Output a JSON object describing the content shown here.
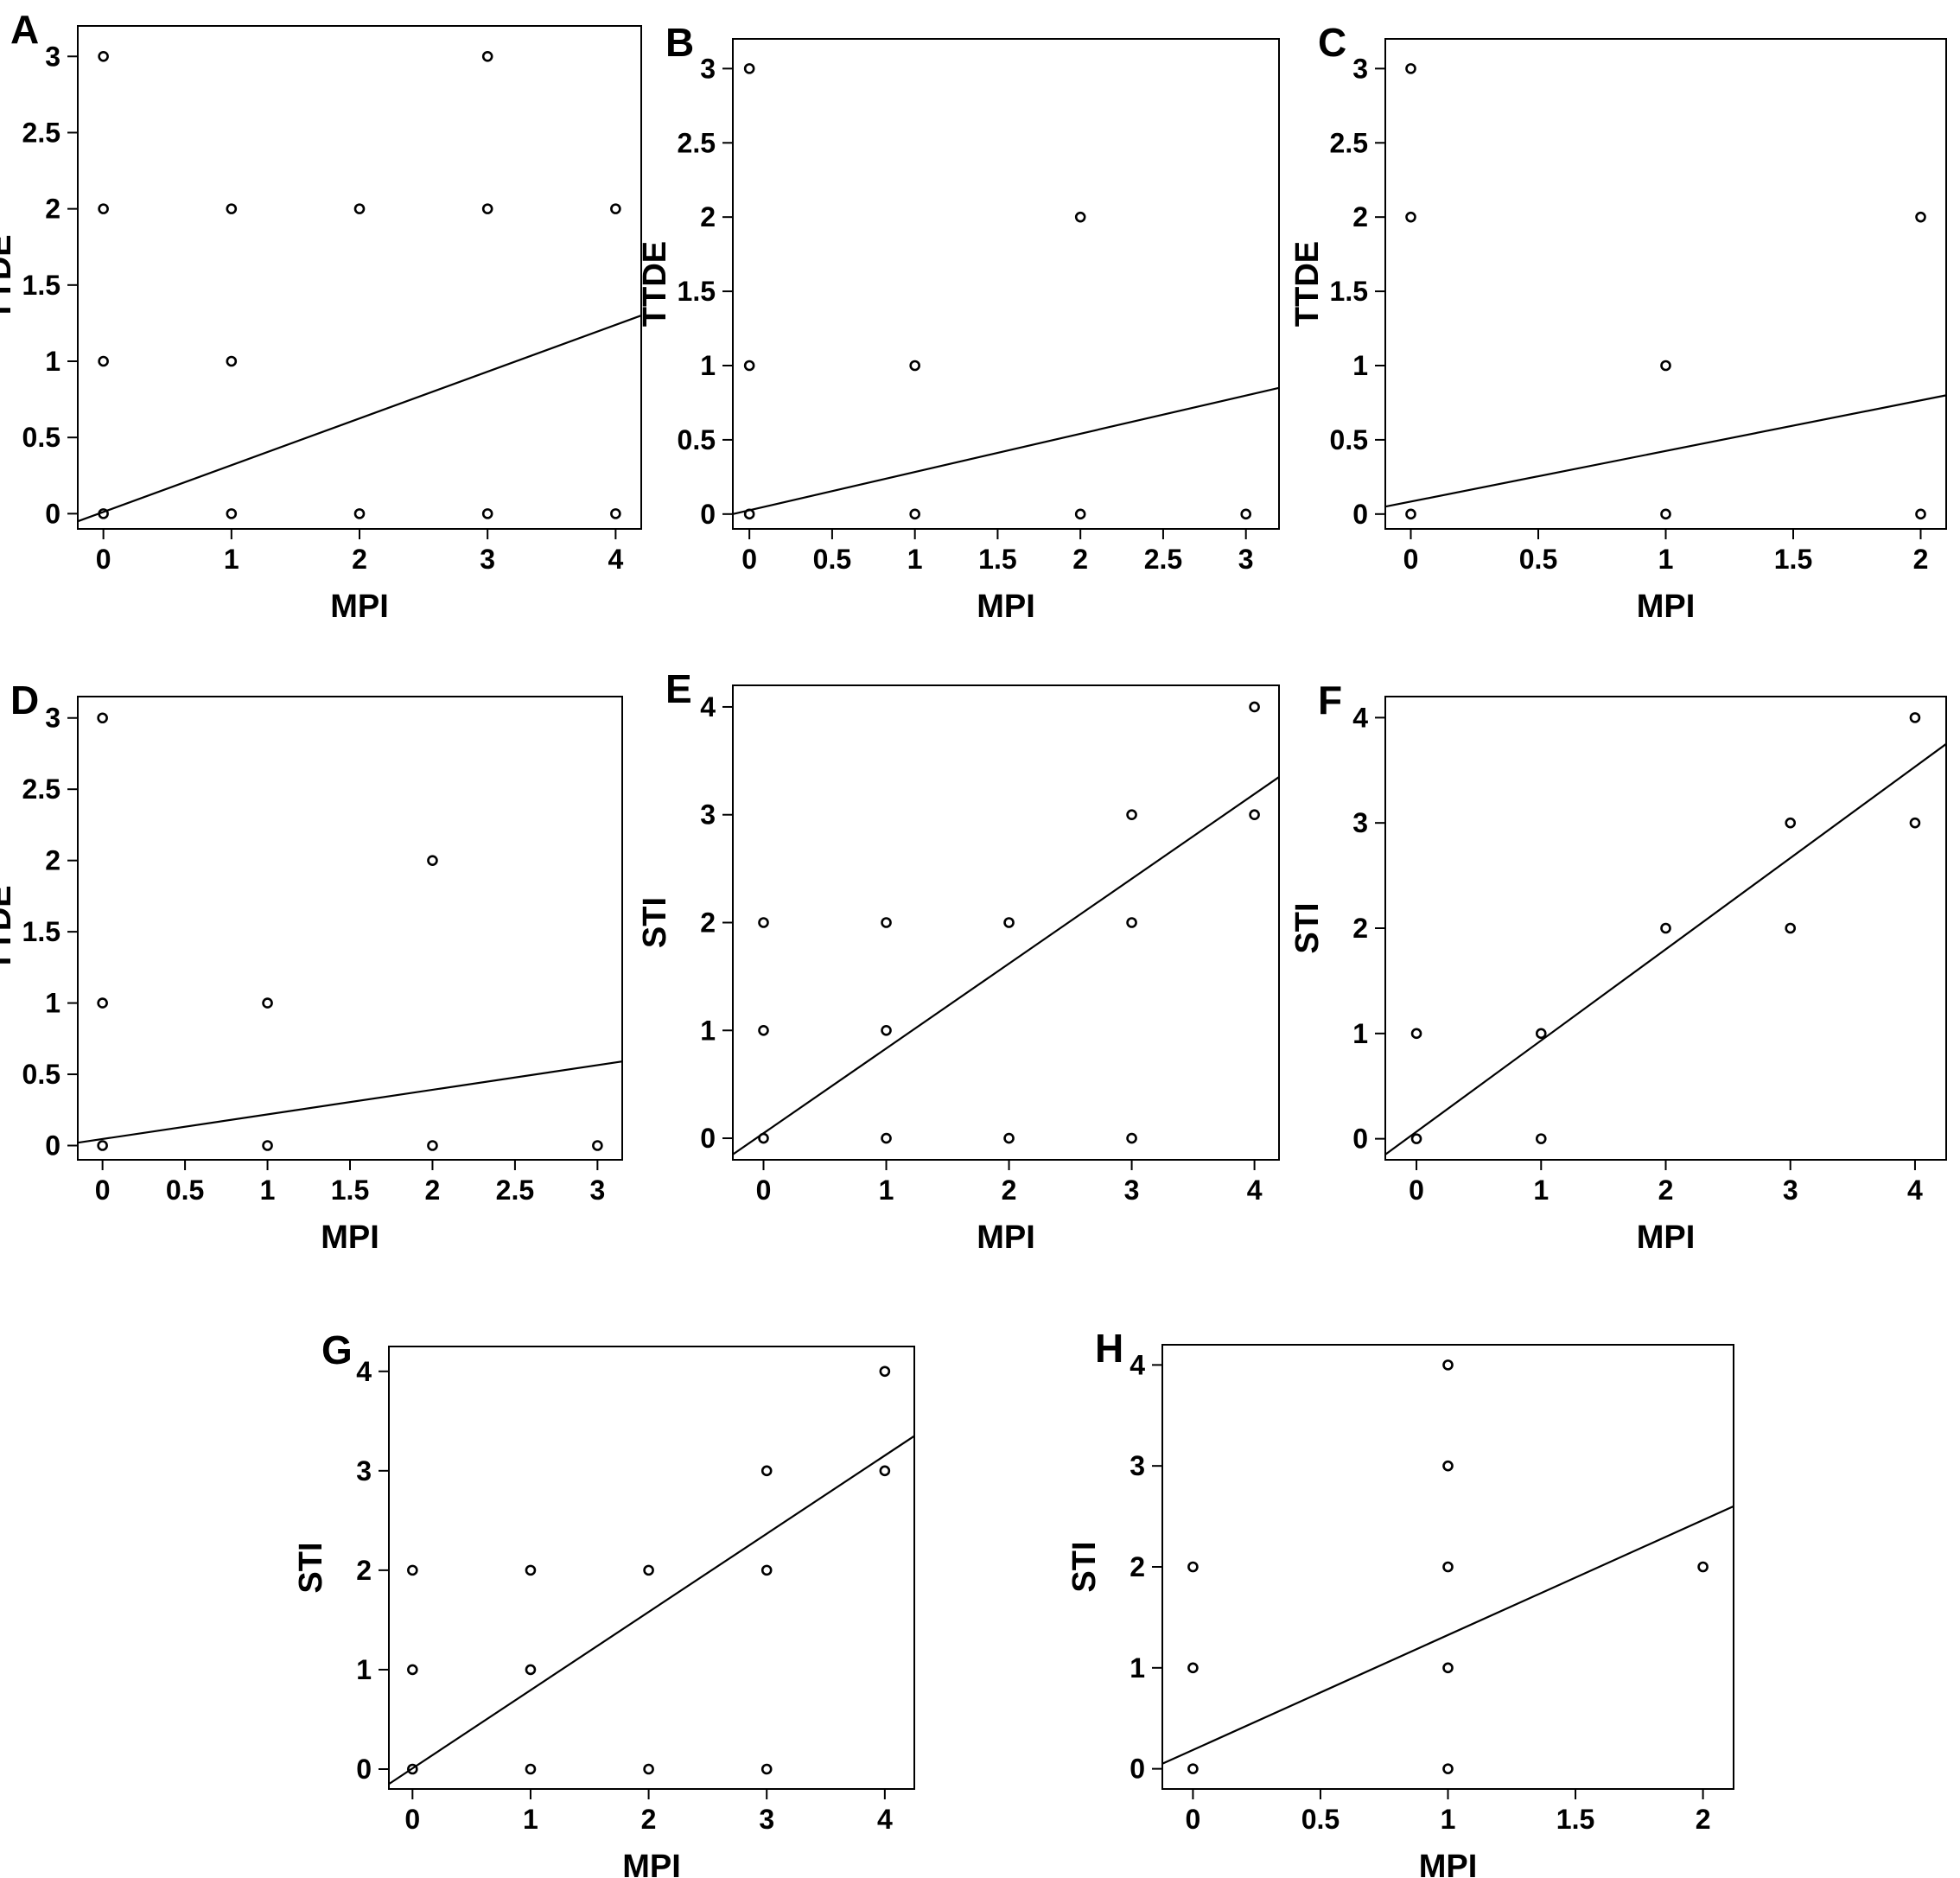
{
  "chart_data": [
    {
      "type": "scatter",
      "panel": "A",
      "xlabel": "MPI",
      "ylabel": "TTDE",
      "xticks": [
        "0",
        "1",
        "2",
        "3",
        "4"
      ],
      "yticks": [
        "0",
        "0.5",
        "1",
        "1.5",
        "2",
        "2.5",
        "3"
      ],
      "xlim": [
        -0.2,
        4.2
      ],
      "ylim": [
        -0.1,
        3.2
      ],
      "points": [
        [
          0,
          3
        ],
        [
          3,
          3
        ],
        [
          0,
          2
        ],
        [
          1,
          2
        ],
        [
          2,
          2
        ],
        [
          3,
          2
        ],
        [
          4,
          2
        ],
        [
          0,
          1
        ],
        [
          1,
          1
        ],
        [
          0,
          0
        ],
        [
          1,
          0
        ],
        [
          2,
          0
        ],
        [
          3,
          0
        ],
        [
          4,
          0
        ]
      ],
      "fit_line": {
        "x": [
          -0.2,
          4.2
        ],
        "y": [
          -0.05,
          1.3
        ]
      }
    },
    {
      "type": "scatter",
      "panel": "B",
      "xlabel": "MPI",
      "ylabel": "TTDE",
      "xticks": [
        "0",
        "0.5",
        "1",
        "1.5",
        "2",
        "2.5",
        "3"
      ],
      "yticks": [
        "0",
        "0.5",
        "1",
        "1.5",
        "2",
        "2.5",
        "3"
      ],
      "xlim": [
        -0.1,
        3.2
      ],
      "ylim": [
        -0.1,
        3.2
      ],
      "points": [
        [
          0,
          3
        ],
        [
          2,
          2
        ],
        [
          0,
          1
        ],
        [
          1,
          1
        ],
        [
          0,
          0
        ],
        [
          1,
          0
        ],
        [
          2,
          0
        ],
        [
          3,
          0
        ]
      ],
      "fit_line": {
        "x": [
          -0.1,
          3.2
        ],
        "y": [
          0.0,
          0.85
        ]
      }
    },
    {
      "type": "scatter",
      "panel": "C",
      "xlabel": "MPI",
      "ylabel": "TTDE",
      "xticks": [
        "0",
        "0.5",
        "1",
        "1.5",
        "2"
      ],
      "yticks": [
        "0",
        "0.5",
        "1",
        "1.5",
        "2",
        "2.5",
        "3"
      ],
      "xlim": [
        -0.1,
        2.1
      ],
      "ylim": [
        -0.1,
        3.2
      ],
      "points": [
        [
          0,
          3
        ],
        [
          0,
          2
        ],
        [
          2,
          2
        ],
        [
          1,
          1
        ],
        [
          0,
          0
        ],
        [
          1,
          0
        ],
        [
          2,
          0
        ]
      ],
      "fit_line": {
        "x": [
          -0.1,
          2.1
        ],
        "y": [
          0.05,
          0.8
        ]
      }
    },
    {
      "type": "scatter",
      "panel": "D",
      "xlabel": "MPI",
      "ylabel": "TTDE",
      "xticks": [
        "0",
        "0.5",
        "1",
        "1.5",
        "2",
        "2.5",
        "3"
      ],
      "yticks": [
        "0",
        "0.5",
        "1",
        "1.5",
        "2",
        "2.5",
        "3"
      ],
      "xlim": [
        -0.15,
        3.15
      ],
      "ylim": [
        -0.1,
        3.15
      ],
      "points": [
        [
          0,
          3
        ],
        [
          2,
          2
        ],
        [
          0,
          1
        ],
        [
          1,
          1
        ],
        [
          0,
          0
        ],
        [
          1,
          0
        ],
        [
          2,
          0
        ],
        [
          3,
          0
        ]
      ],
      "fit_line": {
        "x": [
          -0.15,
          3.15
        ],
        "y": [
          0.02,
          0.59
        ]
      }
    },
    {
      "type": "scatter",
      "panel": "E",
      "xlabel": "MPI",
      "ylabel": "STI",
      "xticks": [
        "0",
        "1",
        "2",
        "3",
        "4"
      ],
      "yticks": [
        "0",
        "1",
        "2",
        "3",
        "4"
      ],
      "xlim": [
        -0.25,
        4.2
      ],
      "ylim": [
        -0.2,
        4.2
      ],
      "points": [
        [
          4,
          4
        ],
        [
          3,
          3
        ],
        [
          4,
          3
        ],
        [
          0,
          2
        ],
        [
          1,
          2
        ],
        [
          2,
          2
        ],
        [
          3,
          2
        ],
        [
          0,
          1
        ],
        [
          1,
          1
        ],
        [
          0,
          0
        ],
        [
          1,
          0
        ],
        [
          2,
          0
        ],
        [
          3,
          0
        ]
      ],
      "fit_line": {
        "x": [
          -0.25,
          4.2
        ],
        "y": [
          -0.15,
          3.35
        ]
      }
    },
    {
      "type": "scatter",
      "panel": "F",
      "xlabel": "MPI",
      "ylabel": "STI",
      "xticks": [
        "0",
        "1",
        "2",
        "3",
        "4"
      ],
      "yticks": [
        "0",
        "1",
        "2",
        "3",
        "4"
      ],
      "xlim": [
        -0.25,
        4.25
      ],
      "ylim": [
        -0.2,
        4.2
      ],
      "points": [
        [
          4,
          4
        ],
        [
          3,
          3
        ],
        [
          4,
          3
        ],
        [
          2,
          2
        ],
        [
          3,
          2
        ],
        [
          0,
          1
        ],
        [
          1,
          1
        ],
        [
          0,
          0
        ],
        [
          1,
          0
        ]
      ],
      "fit_line": {
        "x": [
          -0.25,
          4.25
        ],
        "y": [
          -0.15,
          3.75
        ]
      }
    },
    {
      "type": "scatter",
      "panel": "G",
      "xlabel": "MPI",
      "ylabel": "STI",
      "xticks": [
        "0",
        "1",
        "2",
        "3",
        "4"
      ],
      "yticks": [
        "0",
        "1",
        "2",
        "3",
        "4"
      ],
      "xlim": [
        -0.2,
        4.25
      ],
      "ylim": [
        -0.2,
        4.25
      ],
      "points": [
        [
          4,
          4
        ],
        [
          3,
          3
        ],
        [
          4,
          3
        ],
        [
          0,
          2
        ],
        [
          1,
          2
        ],
        [
          2,
          2
        ],
        [
          3,
          2
        ],
        [
          0,
          1
        ],
        [
          1,
          1
        ],
        [
          0,
          0
        ],
        [
          1,
          0
        ],
        [
          2,
          0
        ],
        [
          3,
          0
        ]
      ],
      "fit_line": {
        "x": [
          -0.2,
          4.25
        ],
        "y": [
          -0.15,
          3.35
        ]
      }
    },
    {
      "type": "scatter",
      "panel": "H",
      "xlabel": "MPI",
      "ylabel": "STI",
      "xticks": [
        "0",
        "0.5",
        "1",
        "1.5",
        "2"
      ],
      "yticks": [
        "0",
        "1",
        "2",
        "3",
        "4"
      ],
      "xlim": [
        -0.12,
        2.12
      ],
      "ylim": [
        -0.2,
        4.2
      ],
      "points": [
        [
          1,
          4
        ],
        [
          1,
          3
        ],
        [
          0,
          2
        ],
        [
          1,
          2
        ],
        [
          2,
          2
        ],
        [
          0,
          1
        ],
        [
          1,
          1
        ],
        [
          0,
          0
        ],
        [
          1,
          0
        ]
      ],
      "fit_line": {
        "x": [
          -0.12,
          2.12
        ],
        "y": [
          0.05,
          2.6
        ]
      }
    }
  ]
}
